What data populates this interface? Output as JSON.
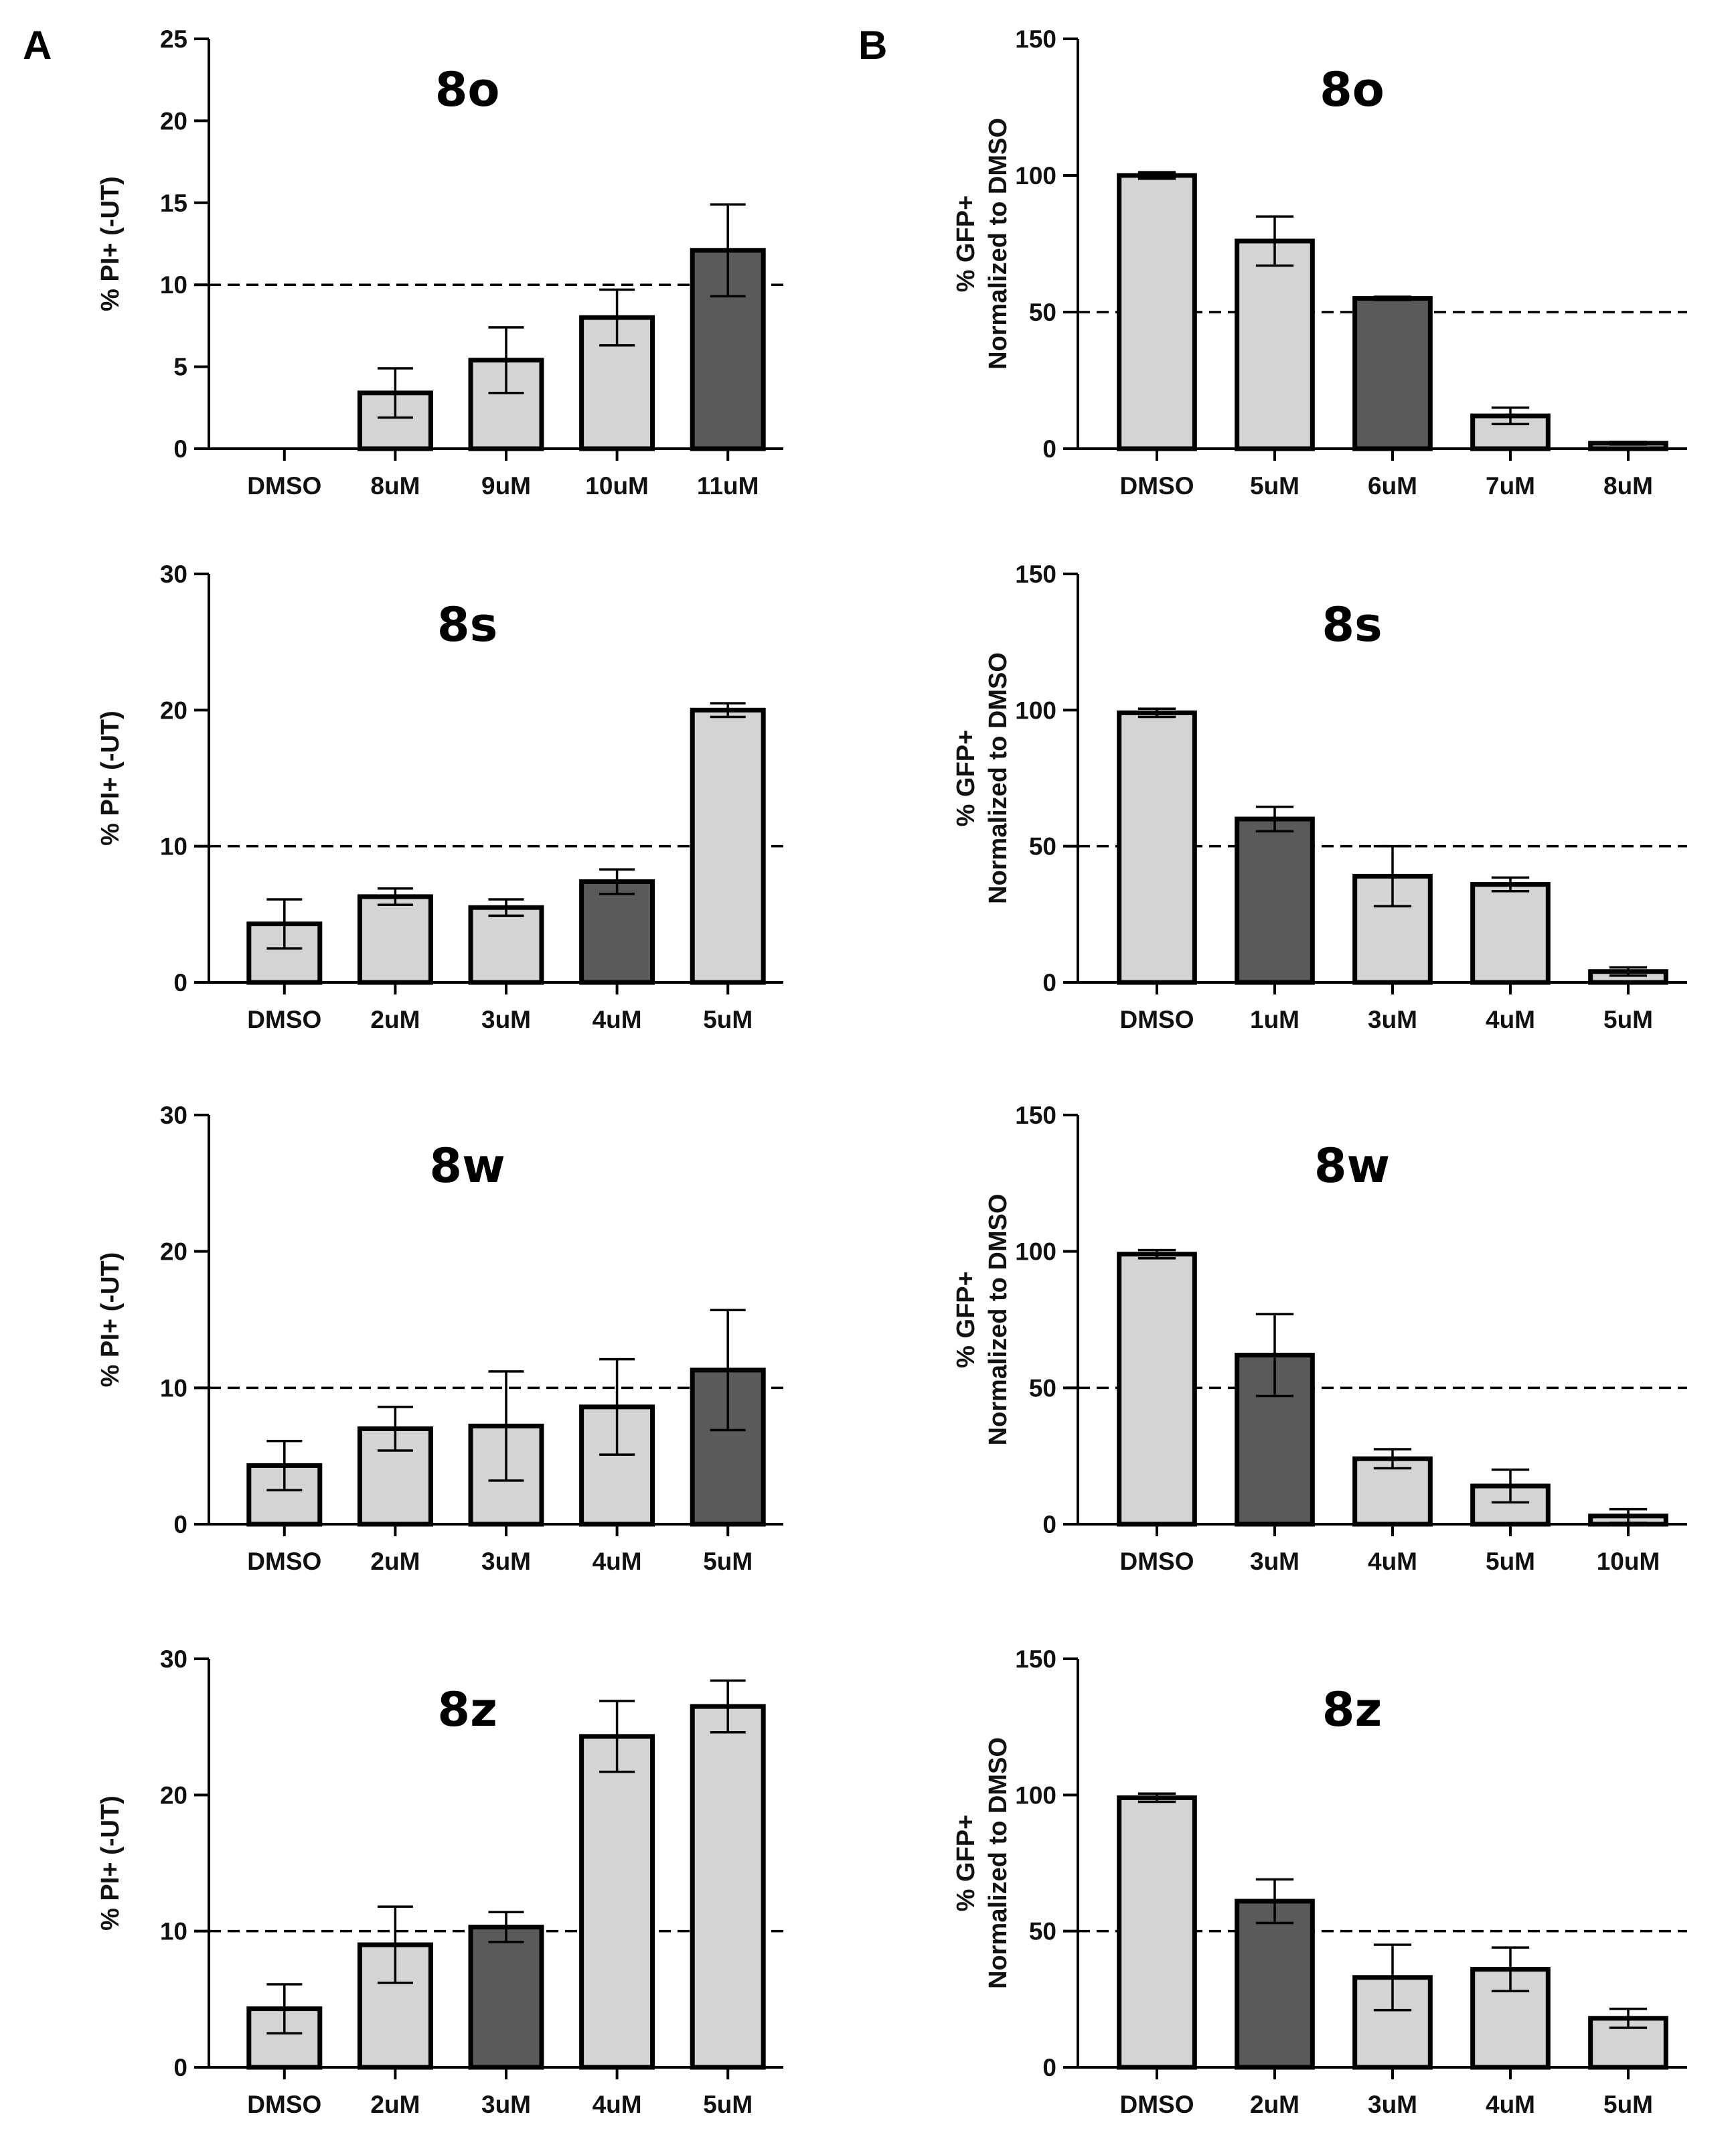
{
  "panel_labels": {
    "A": "A",
    "B": "B"
  },
  "colors": {
    "light_bar": "#d4d4d4",
    "dark_bar": "#5a5a5a",
    "stroke": "#000000",
    "background": "#ffffff"
  },
  "chart_data": [
    {
      "type": "bar",
      "panel": "A",
      "title": "8o",
      "ylabel": "% PI+ (-UT)",
      "xlabel": "",
      "ylim": [
        0,
        25
      ],
      "yticks": [
        0,
        5,
        10,
        15,
        20,
        25
      ],
      "threshold": 10,
      "categories": [
        "DMSO",
        "8uM",
        "9uM",
        "10uM",
        "11uM"
      ],
      "values": [
        0,
        3.4,
        5.4,
        8.0,
        12.1
      ],
      "errors": [
        0,
        1.5,
        2.0,
        1.7,
        2.8
      ],
      "highlight": [
        false,
        false,
        false,
        false,
        true
      ]
    },
    {
      "type": "bar",
      "panel": "A",
      "title": "8s",
      "ylabel": "% PI+ (-UT)",
      "xlabel": "",
      "ylim": [
        0,
        30
      ],
      "yticks": [
        0,
        10,
        20,
        30
      ],
      "threshold": 10,
      "categories": [
        "DMSO",
        "2uM",
        "3uM",
        "4uM",
        "5uM"
      ],
      "values": [
        4.3,
        6.3,
        5.5,
        7.4,
        20.0
      ],
      "errors": [
        1.8,
        0.6,
        0.6,
        0.9,
        0.5
      ],
      "highlight": [
        false,
        false,
        false,
        true,
        false
      ]
    },
    {
      "type": "bar",
      "panel": "A",
      "title": "8w",
      "ylabel": "% PI+ (-UT)",
      "xlabel": "",
      "ylim": [
        0,
        30
      ],
      "yticks": [
        0,
        10,
        20,
        30
      ],
      "threshold": 10,
      "categories": [
        "DMSO",
        "2uM",
        "3uM",
        "4uM",
        "5uM"
      ],
      "values": [
        4.3,
        7.0,
        7.2,
        8.6,
        11.3
      ],
      "errors": [
        1.8,
        1.6,
        4.0,
        3.5,
        4.4
      ],
      "highlight": [
        false,
        false,
        false,
        false,
        true
      ]
    },
    {
      "type": "bar",
      "panel": "A",
      "title": "8z",
      "ylabel": "% PI+ (-UT)",
      "xlabel": "",
      "ylim": [
        0,
        30
      ],
      "yticks": [
        0,
        10,
        20,
        30
      ],
      "threshold": 10,
      "categories": [
        "DMSO",
        "2uM",
        "3uM",
        "4uM",
        "5uM"
      ],
      "values": [
        4.3,
        9.0,
        10.3,
        24.3,
        26.5
      ],
      "errors": [
        1.8,
        2.8,
        1.1,
        2.6,
        1.9
      ],
      "highlight": [
        false,
        false,
        true,
        false,
        false
      ]
    },
    {
      "type": "bar",
      "panel": "B",
      "title": "8o",
      "ylabel": [
        "% GFP+",
        "Normalized to DMSO"
      ],
      "xlabel": "",
      "ylim": [
        0,
        150
      ],
      "yticks": [
        0,
        50,
        100,
        150
      ],
      "threshold": 50,
      "categories": [
        "DMSO",
        "5uM",
        "6uM",
        "7uM",
        "8uM"
      ],
      "values": [
        100,
        76,
        55,
        12,
        2
      ],
      "errors": [
        1.2,
        9,
        0.6,
        3,
        0.5
      ],
      "highlight": [
        false,
        false,
        true,
        false,
        false
      ]
    },
    {
      "type": "bar",
      "panel": "B",
      "title": "8s",
      "ylabel": [
        "% GFP+",
        "Normalized to DMSO"
      ],
      "xlabel": "",
      "ylim": [
        0,
        150
      ],
      "yticks": [
        0,
        50,
        100,
        150
      ],
      "threshold": 50,
      "categories": [
        "DMSO",
        "1uM",
        "3uM",
        "4uM",
        "5uM"
      ],
      "values": [
        99,
        60,
        39,
        36,
        4
      ],
      "errors": [
        1.5,
        4.5,
        11,
        2.5,
        1.5
      ],
      "highlight": [
        false,
        true,
        false,
        false,
        false
      ]
    },
    {
      "type": "bar",
      "panel": "B",
      "title": "8w",
      "ylabel": [
        "% GFP+",
        "Normalized to DMSO"
      ],
      "xlabel": "",
      "ylim": [
        0,
        150
      ],
      "yticks": [
        0,
        50,
        100,
        150
      ],
      "threshold": 50,
      "categories": [
        "DMSO",
        "3uM",
        "4uM",
        "5uM",
        "10uM"
      ],
      "values": [
        99,
        62,
        24,
        14,
        3
      ],
      "errors": [
        1.5,
        15,
        3.5,
        6,
        2.5
      ],
      "highlight": [
        false,
        true,
        false,
        false,
        false
      ]
    },
    {
      "type": "bar",
      "panel": "B",
      "title": "8z",
      "ylabel": [
        "% GFP+",
        "Normalized to DMSO"
      ],
      "xlabel": "",
      "ylim": [
        0,
        150
      ],
      "yticks": [
        0,
        50,
        100,
        150
      ],
      "threshold": 50,
      "categories": [
        "DMSO",
        "2uM",
        "3uM",
        "4uM",
        "5uM"
      ],
      "values": [
        99,
        61,
        33,
        36,
        18
      ],
      "errors": [
        1.5,
        8,
        12,
        8,
        3.5
      ],
      "highlight": [
        false,
        true,
        false,
        false,
        false
      ]
    }
  ]
}
